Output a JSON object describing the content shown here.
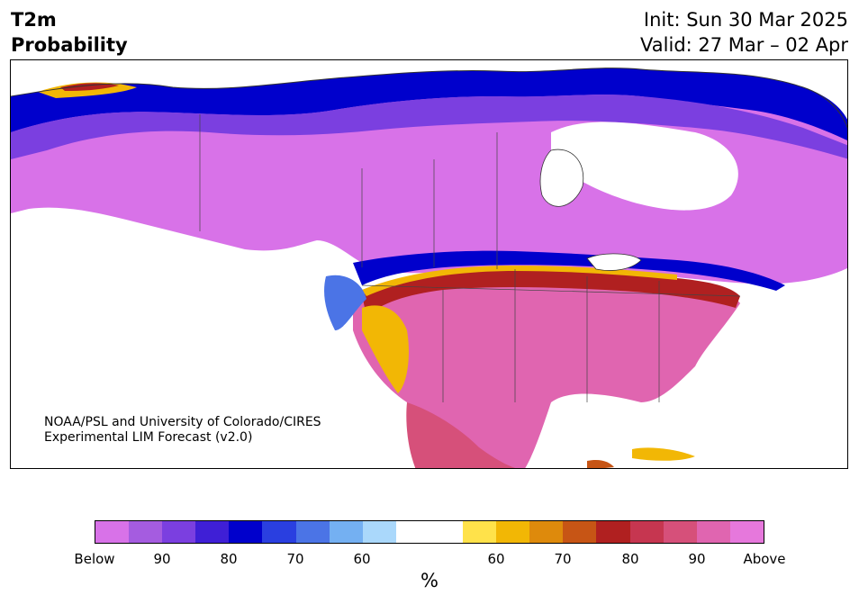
{
  "header": {
    "title_line1": "T2m",
    "title_line2": "Probability",
    "init": "Init: Sun 30 Mar 2025",
    "valid": "Valid: 27 Mar – 02 Apr"
  },
  "credit": {
    "line1": "NOAA/PSL and University of Colorado/CIRES",
    "line2": "Experimental LIM Forecast (v2.0)"
  },
  "colorbar": {
    "colors": [
      "#d872e8",
      "#a55ce0",
      "#7b3fe0",
      "#3f1fd6",
      "#0000cc",
      "#2a3fe0",
      "#4b74e6",
      "#74b0f2",
      "#aad8fb",
      "#ffffff",
      "#ffffff",
      "#ffe24a",
      "#f2b705",
      "#de8a0c",
      "#c75515",
      "#b02020",
      "#c63650",
      "#d6507a",
      "#e065b0",
      "#e678dc"
    ],
    "ticks": [
      "Below",
      "90",
      "80",
      "70",
      "60",
      "60",
      "70",
      "80",
      "90",
      "Above"
    ],
    "unit": "%"
  },
  "legend_colors": {
    "below_deep": "#d872e8",
    "below_mid": "#7b3fe0",
    "below_strong": "#0000cc",
    "below_weak": "#aad8fb",
    "neutral": "#ffffff",
    "above_weak": "#ffe24a",
    "above_mid": "#c75515",
    "above_strong": "#b02020",
    "above_deep": "#e678dc"
  }
}
